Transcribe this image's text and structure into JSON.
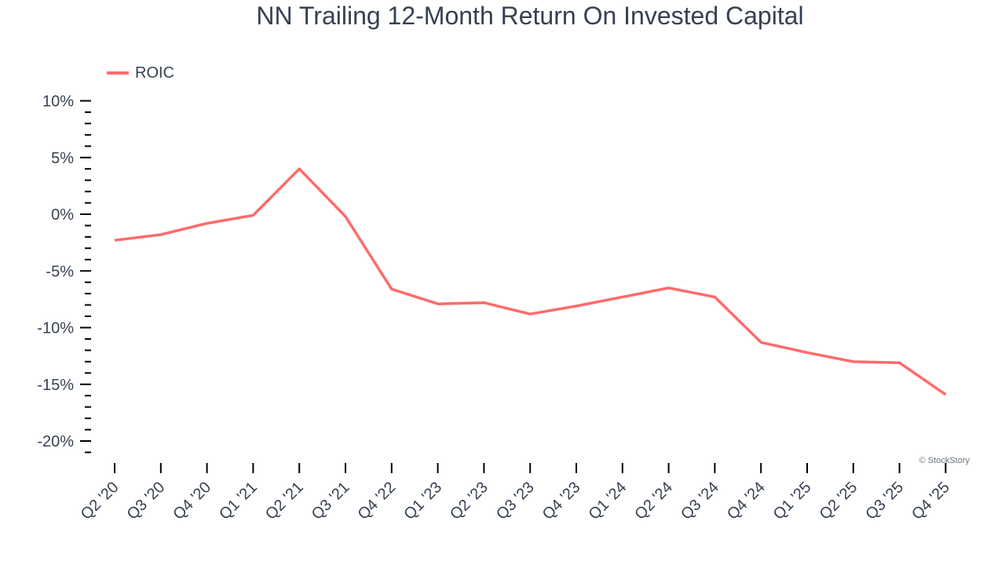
{
  "chart_data": {
    "type": "line",
    "title": "NN Trailing 12-Month Return On Invested Capital",
    "xlabel": "",
    "ylabel": "",
    "categories": [
      "Q2 '20",
      "Q3 '20",
      "Q4 '20",
      "Q1 '21",
      "Q2 '21",
      "Q3 '21",
      "Q4 '22",
      "Q1 '23",
      "Q2 '23",
      "Q3 '23",
      "Q4 '23",
      "Q1 '24",
      "Q2 '24",
      "Q3 '24",
      "Q4 '24",
      "Q1 '25",
      "Q2 '25",
      "Q3 '25",
      "Q4 '25"
    ],
    "series": [
      {
        "name": "ROIC",
        "color": "#ff6b6b",
        "values": [
          -2.3,
          -1.8,
          -0.8,
          -0.1,
          4.0,
          -0.2,
          -6.6,
          -7.9,
          -7.8,
          -8.8,
          -8.1,
          -7.3,
          -6.5,
          -7.3,
          -11.3,
          -12.2,
          -13.0,
          -13.1,
          -15.9
        ]
      }
    ],
    "ylim": [
      -21,
      10
    ],
    "yticks": [
      10,
      5,
      0,
      -5,
      -10,
      -15,
      -20
    ],
    "ytick_labels": [
      "10%",
      "5%",
      "0%",
      "-5%",
      "-10%",
      "-15%",
      "-20%"
    ],
    "grid": false,
    "legend_position": "top-left"
  },
  "header": {
    "title": "NN Trailing 12-Month Return On Invested Capital"
  },
  "legend": {
    "label": "ROIC"
  },
  "credit": "© StockStory"
}
